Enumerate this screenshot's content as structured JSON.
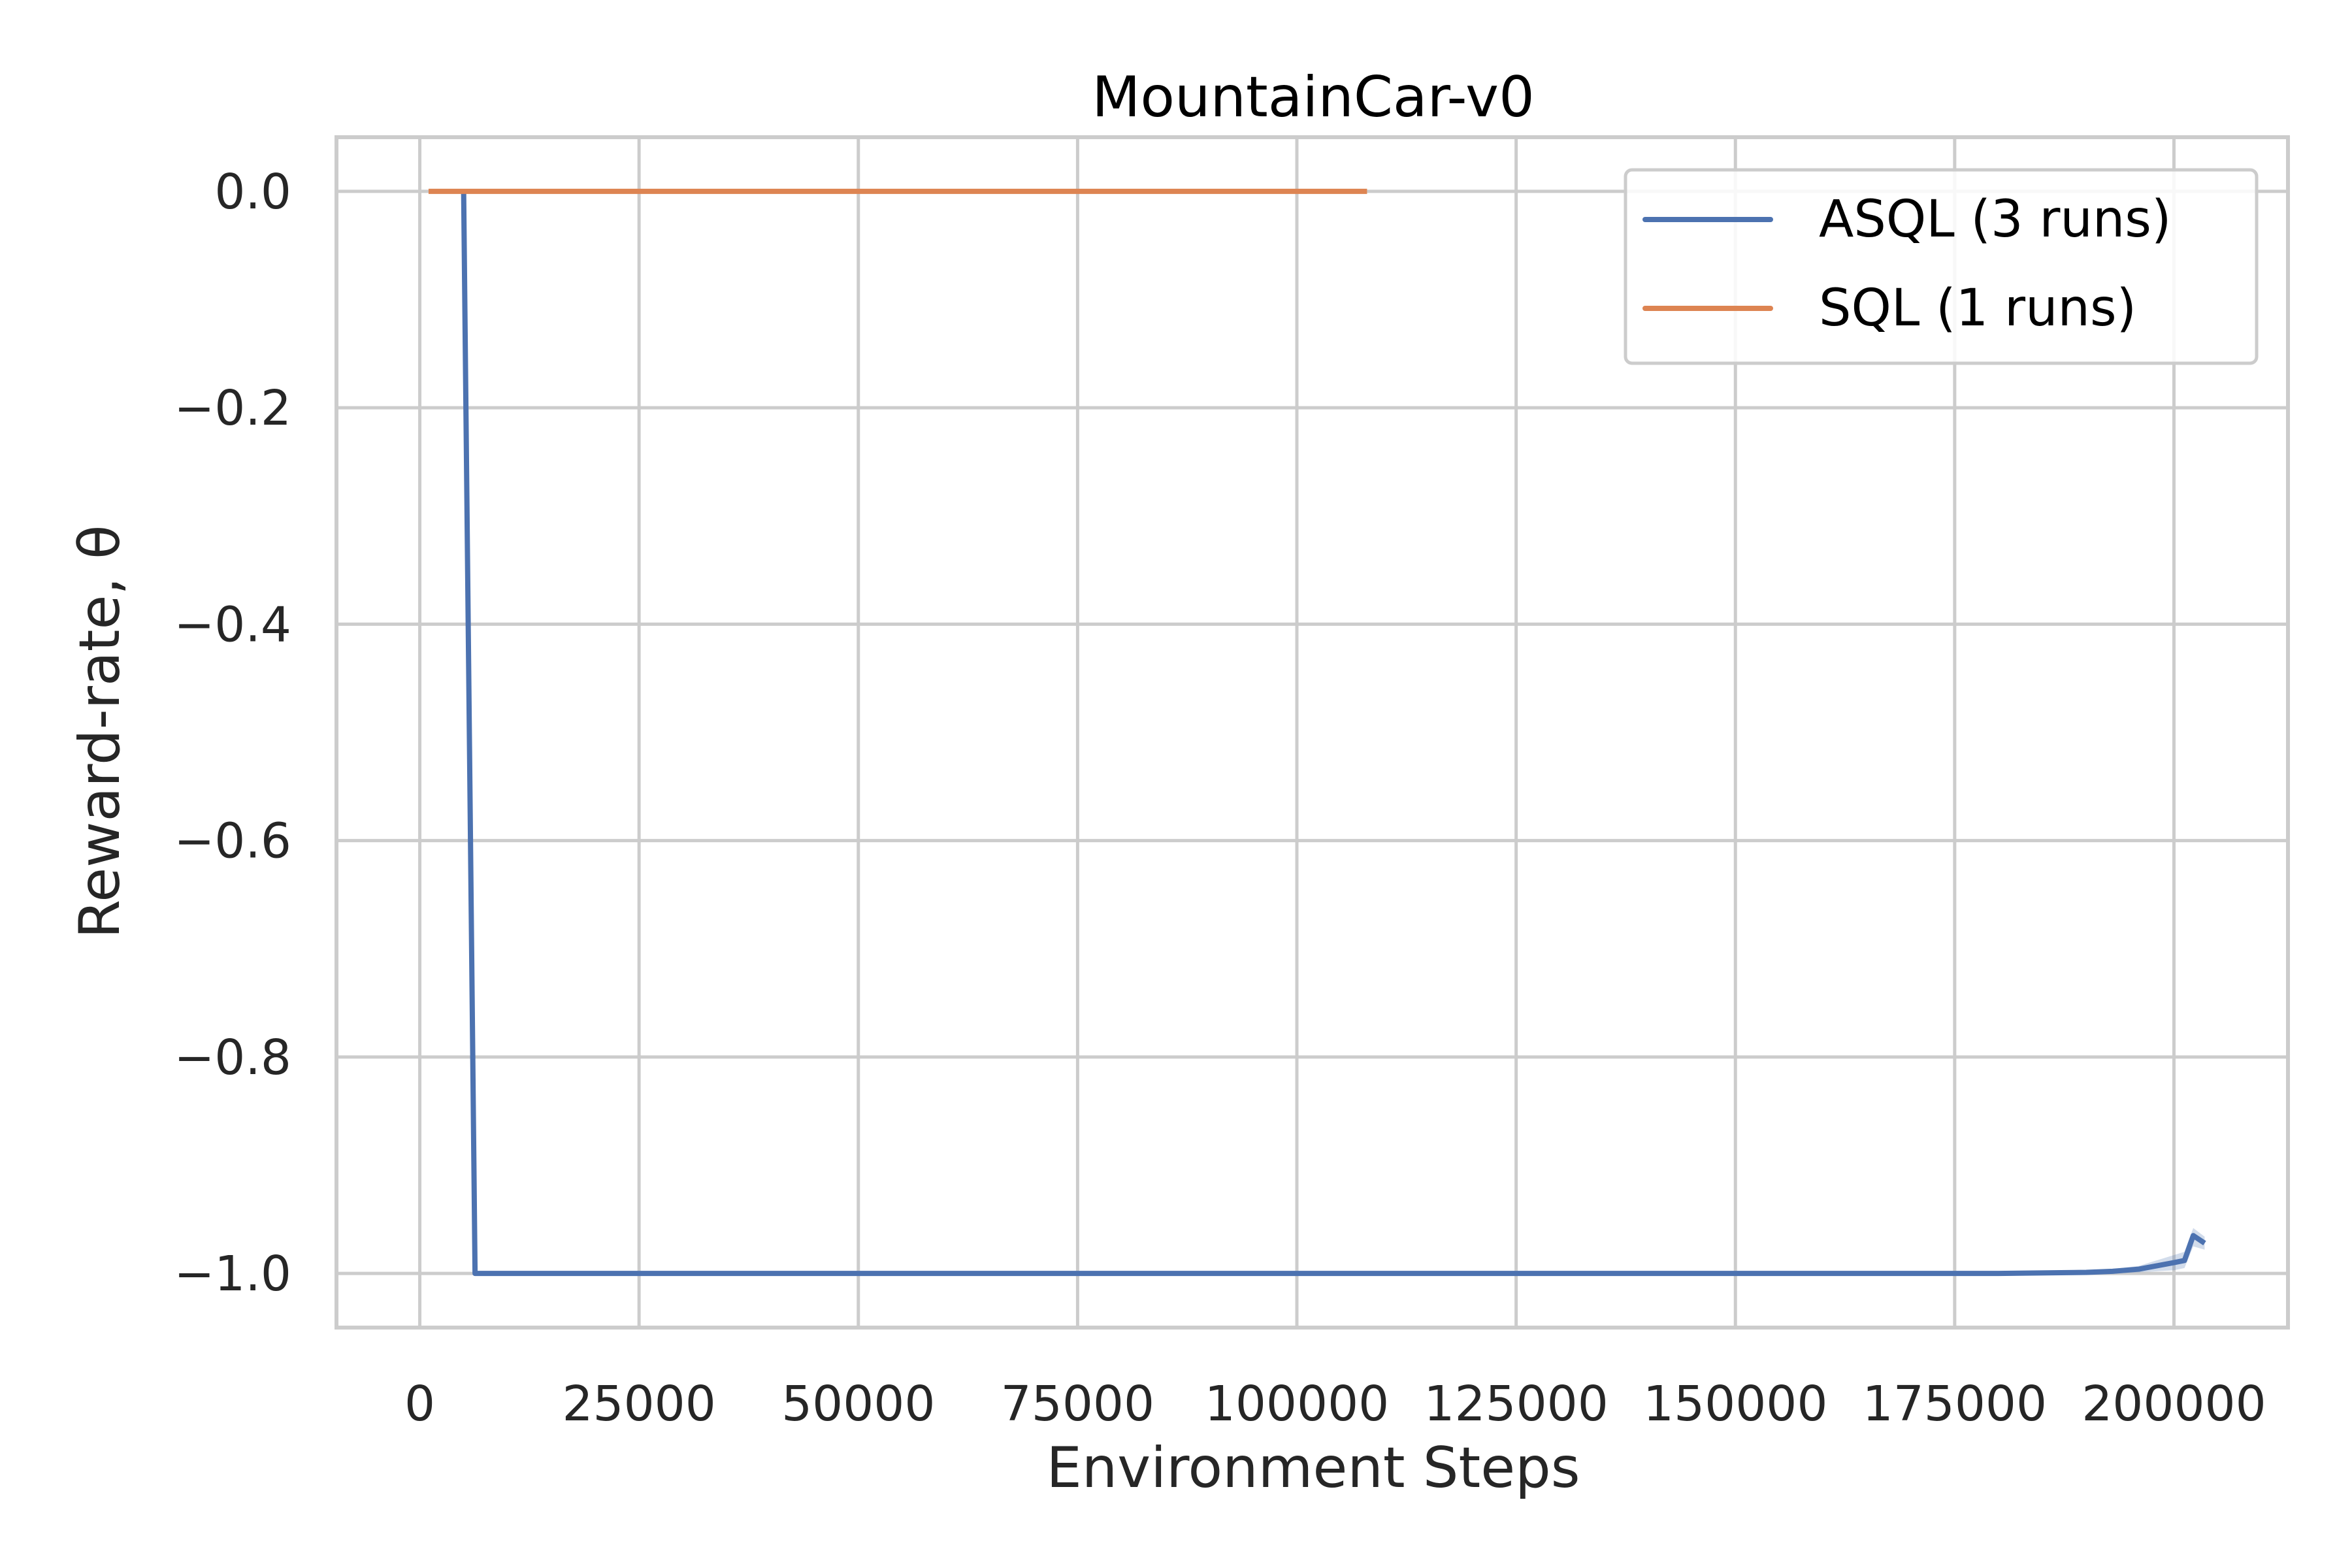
{
  "chart_data": {
    "type": "line",
    "title": "MountainCar-v0",
    "xlabel": "Environment Steps",
    "ylabel": "Reward-rate, θ",
    "xlim": [
      -9500,
      213000
    ],
    "ylim": [
      -1.05,
      0.05
    ],
    "xticks": [
      0,
      25000,
      50000,
      75000,
      100000,
      125000,
      150000,
      175000,
      200000
    ],
    "yticks": [
      0.0,
      -0.2,
      -0.4,
      -0.6,
      -0.8,
      -1.0
    ],
    "ytick_labels": [
      "0.0",
      "−0.2",
      "−0.4",
      "−0.6",
      "−0.8",
      "−1.0"
    ],
    "grid": true,
    "legend_position": "top-right",
    "series": [
      {
        "name": "ASQL (3 runs)",
        "color": "#4c72b0",
        "x": [
          5000,
          6300,
          50000,
          100000,
          150000,
          180000,
          190000,
          193000,
          196000,
          198000,
          200000,
          201200,
          202200,
          203500
        ],
        "y": [
          0.0,
          -1.0,
          -1.0,
          -1.0,
          -1.0,
          -1.0,
          -0.999,
          -0.998,
          -0.996,
          -0.993,
          -0.99,
          -0.988,
          -0.965,
          -0.972
        ],
        "band_lower": [
          0.0,
          -1.0,
          -1.0,
          -1.0,
          -1.0,
          -1.0,
          -1.0,
          -1.0,
          -0.999,
          -0.998,
          -0.997,
          -0.995,
          -0.975,
          -0.978
        ],
        "band_upper": [
          0.0,
          -1.0,
          -1.0,
          -1.0,
          -1.0,
          -1.0,
          -0.998,
          -0.996,
          -0.993,
          -0.988,
          -0.983,
          -0.98,
          -0.958,
          -0.966
        ]
      },
      {
        "name": "SQL (1 runs)",
        "color": "#dd8452",
        "x": [
          1000,
          108000
        ],
        "y": [
          0.0,
          0.0
        ]
      }
    ]
  }
}
